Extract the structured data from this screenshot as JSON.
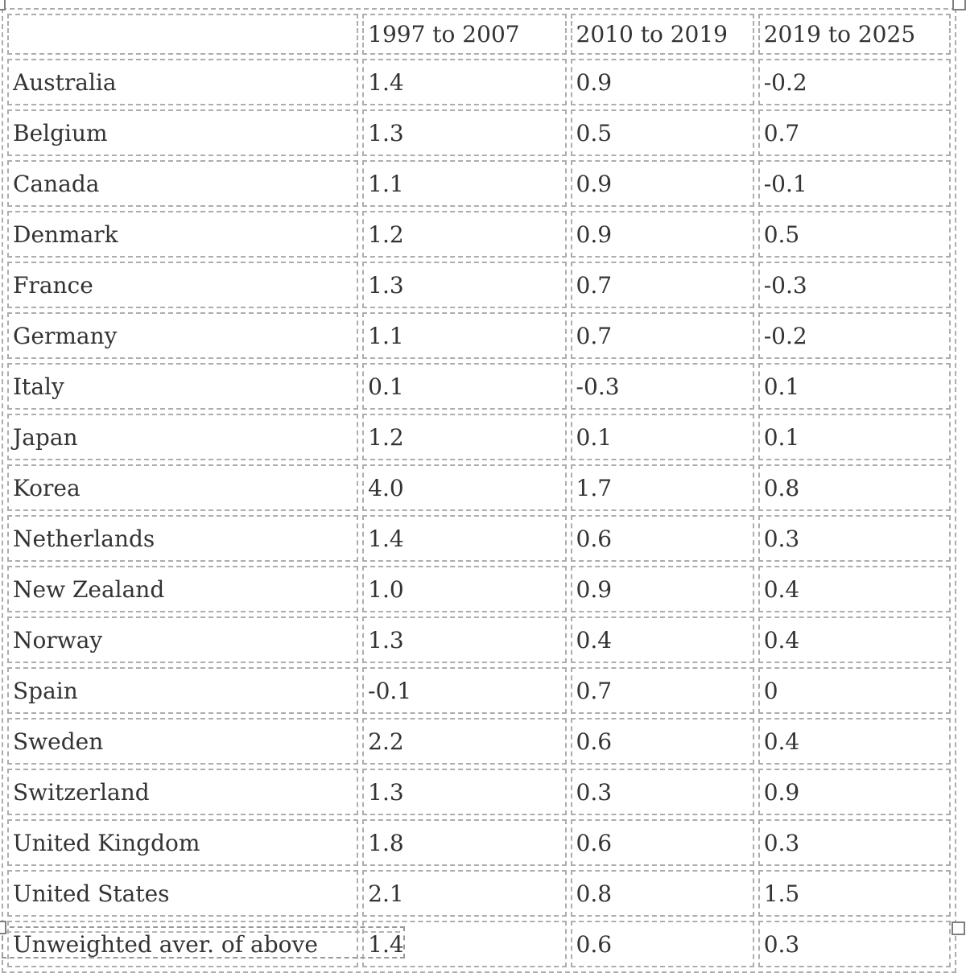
{
  "chart_data": {
    "type": "table",
    "title": "",
    "columns": [
      "",
      "1997 to 2007",
      "2010 to 2019",
      "2019 to 2025"
    ],
    "rows": [
      {
        "label": "Australia",
        "values": [
          "1.4",
          "0.9",
          "-0.2"
        ]
      },
      {
        "label": "Belgium",
        "values": [
          "1.3",
          "0.5",
          "0.7"
        ]
      },
      {
        "label": "Canada",
        "values": [
          "1.1",
          "0.9",
          "-0.1"
        ]
      },
      {
        "label": "Denmark",
        "values": [
          "1.2",
          "0.9",
          "0.5"
        ]
      },
      {
        "label": "France",
        "values": [
          "1.3",
          "0.7",
          "-0.3"
        ]
      },
      {
        "label": "Germany",
        "values": [
          "1.1",
          "0.7",
          "-0.2"
        ]
      },
      {
        "label": "Italy",
        "values": [
          "0.1",
          "-0.3",
          "0.1"
        ]
      },
      {
        "label": "Japan",
        "values": [
          "1.2",
          "0.1",
          "0.1"
        ]
      },
      {
        "label": "Korea",
        "values": [
          "4.0",
          "1.7",
          "0.8"
        ]
      },
      {
        "label": "Netherlands",
        "values": [
          "1.4",
          "0.6",
          "0.3"
        ]
      },
      {
        "label": "New Zealand",
        "values": [
          "1.0",
          "0.9",
          "0.4"
        ]
      },
      {
        "label": "Norway",
        "values": [
          "1.3",
          "0.4",
          "0.4"
        ]
      },
      {
        "label": "Spain",
        "values": [
          "-0.1",
          "0.7",
          "0"
        ]
      },
      {
        "label": "Sweden",
        "values": [
          "2.2",
          "0.6",
          "0.4"
        ]
      },
      {
        "label": "Switzerland",
        "values": [
          "1.3",
          "0.3",
          "0.9"
        ]
      },
      {
        "label": "United Kingdom",
        "values": [
          "1.8",
          "0.6",
          "0.3"
        ]
      },
      {
        "label": "United States",
        "values": [
          "2.1",
          "0.8",
          "1.5"
        ]
      },
      {
        "label": "Unweighted aver. of above",
        "values": [
          "1.4",
          "0.6",
          "0.3"
        ]
      }
    ],
    "layout_hints": {
      "grid": "dashed-cell-outlines",
      "first_column_role": "country",
      "values_are": "percent growth per period"
    }
  },
  "editor": {
    "selection_handles": [
      "top-left",
      "top-right",
      "bottom-left",
      "bottom-right"
    ],
    "partial_next_element_visible": true
  },
  "colors": {
    "background": "#ffffff",
    "text": "#333333",
    "cell_border_dash": "#adadad",
    "partial_block_border": "#999999",
    "handle_border": "#7f7f7f",
    "handle_fill": "#ffffff"
  }
}
